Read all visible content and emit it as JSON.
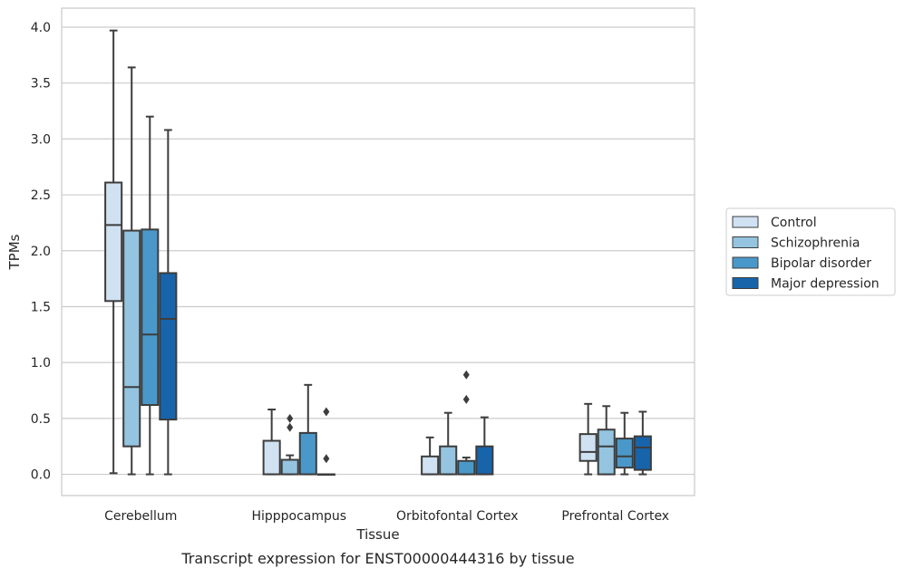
{
  "chart_data": {
    "type": "boxplot",
    "xlabel": "Tissue",
    "ylabel": "TPMs",
    "caption": "Transcript expression for ENST00000444316 by tissue",
    "ylim": [
      -0.19,
      4.17
    ],
    "yticks": [
      0.0,
      0.5,
      1.0,
      1.5,
      2.0,
      2.5,
      3.0,
      3.5,
      4.0
    ],
    "ytick_labels": [
      "0.0",
      "0.5",
      "1.0",
      "1.5",
      "2.0",
      "2.5",
      "3.0",
      "3.5",
      "4.0"
    ],
    "grid": "horizontal",
    "legend_position": "right",
    "categories": [
      "Cerebellum",
      "Hipppocampus",
      "Orbitofontal Cortex",
      "Prefrontal Cortex"
    ],
    "series": [
      {
        "name": "Control",
        "color": "#d0e1f2",
        "boxes": [
          {
            "whislo": 0.01,
            "q1": 1.55,
            "med": 2.23,
            "q3": 2.61,
            "whishi": 3.97,
            "fliers": []
          },
          {
            "whislo": 0.0,
            "q1": 0.0,
            "med": 0.0,
            "q3": 0.3,
            "whishi": 0.58,
            "fliers": []
          },
          {
            "whislo": 0.0,
            "q1": 0.0,
            "med": 0.0,
            "q3": 0.16,
            "whishi": 0.33,
            "fliers": []
          },
          {
            "whislo": 0.0,
            "q1": 0.12,
            "med": 0.2,
            "q3": 0.36,
            "whishi": 0.63,
            "fliers": []
          }
        ]
      },
      {
        "name": "Schizophrenia",
        "color": "#94c4df",
        "boxes": [
          {
            "whislo": 0.0,
            "q1": 0.25,
            "med": 0.78,
            "q3": 2.18,
            "whishi": 3.64,
            "fliers": []
          },
          {
            "whislo": 0.0,
            "q1": 0.0,
            "med": 0.0,
            "q3": 0.13,
            "whishi": 0.17,
            "fliers": [
              0.42,
              0.5
            ]
          },
          {
            "whislo": 0.0,
            "q1": 0.0,
            "med": 0.0,
            "q3": 0.25,
            "whishi": 0.55,
            "fliers": []
          },
          {
            "whislo": 0.0,
            "q1": 0.0,
            "med": 0.25,
            "q3": 0.4,
            "whishi": 0.61,
            "fliers": []
          }
        ]
      },
      {
        "name": "Bipolar disorder",
        "color": "#4a98c9",
        "boxes": [
          {
            "whislo": 0.0,
            "q1": 0.62,
            "med": 1.25,
            "q3": 2.19,
            "whishi": 3.2,
            "fliers": []
          },
          {
            "whislo": 0.0,
            "q1": 0.0,
            "med": 0.0,
            "q3": 0.37,
            "whishi": 0.8,
            "fliers": []
          },
          {
            "whislo": 0.0,
            "q1": 0.0,
            "med": 0.0,
            "q3": 0.12,
            "whishi": 0.15,
            "fliers": [
              0.67,
              0.89
            ]
          },
          {
            "whislo": 0.0,
            "q1": 0.06,
            "med": 0.16,
            "q3": 0.32,
            "whishi": 0.55,
            "fliers": []
          }
        ]
      },
      {
        "name": "Major depression",
        "color": "#1764ab",
        "boxes": [
          {
            "whislo": 0.0,
            "q1": 0.49,
            "med": 1.39,
            "q3": 1.8,
            "whishi": 3.08,
            "fliers": []
          },
          {
            "whislo": 0.0,
            "q1": 0.0,
            "med": 0.0,
            "q3": 0.0,
            "whishi": 0.0,
            "fliers": [
              0.14,
              0.56
            ]
          },
          {
            "whislo": 0.0,
            "q1": 0.0,
            "med": 0.0,
            "q3": 0.25,
            "whishi": 0.51,
            "fliers": []
          },
          {
            "whislo": 0.0,
            "q1": 0.04,
            "med": 0.24,
            "q3": 0.34,
            "whishi": 0.56,
            "fliers": []
          }
        ]
      }
    ]
  }
}
